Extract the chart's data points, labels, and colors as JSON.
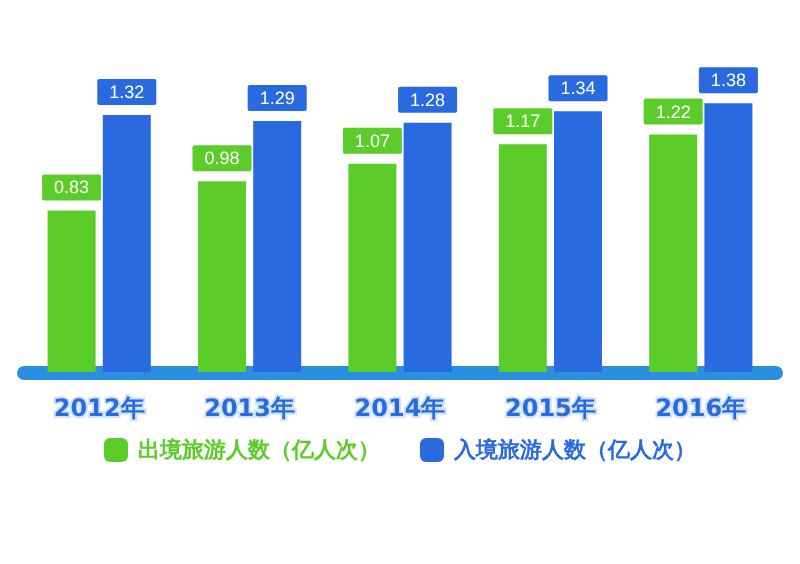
{
  "chart_data": {
    "type": "bar",
    "categories": [
      "2012年",
      "2013年",
      "2014年",
      "2015年",
      "2016年"
    ],
    "series": [
      {
        "name": "出境旅游人数（亿人次）",
        "color": "#5ccc2a",
        "values": [
          0.83,
          0.98,
          1.07,
          1.17,
          1.22
        ]
      },
      {
        "name": "入境旅游人数（亿人次）",
        "color": "#2a6ae0",
        "values": [
          1.32,
          1.29,
          1.28,
          1.34,
          1.38
        ]
      }
    ],
    "data_labels": true,
    "legend": "bottom"
  }
}
